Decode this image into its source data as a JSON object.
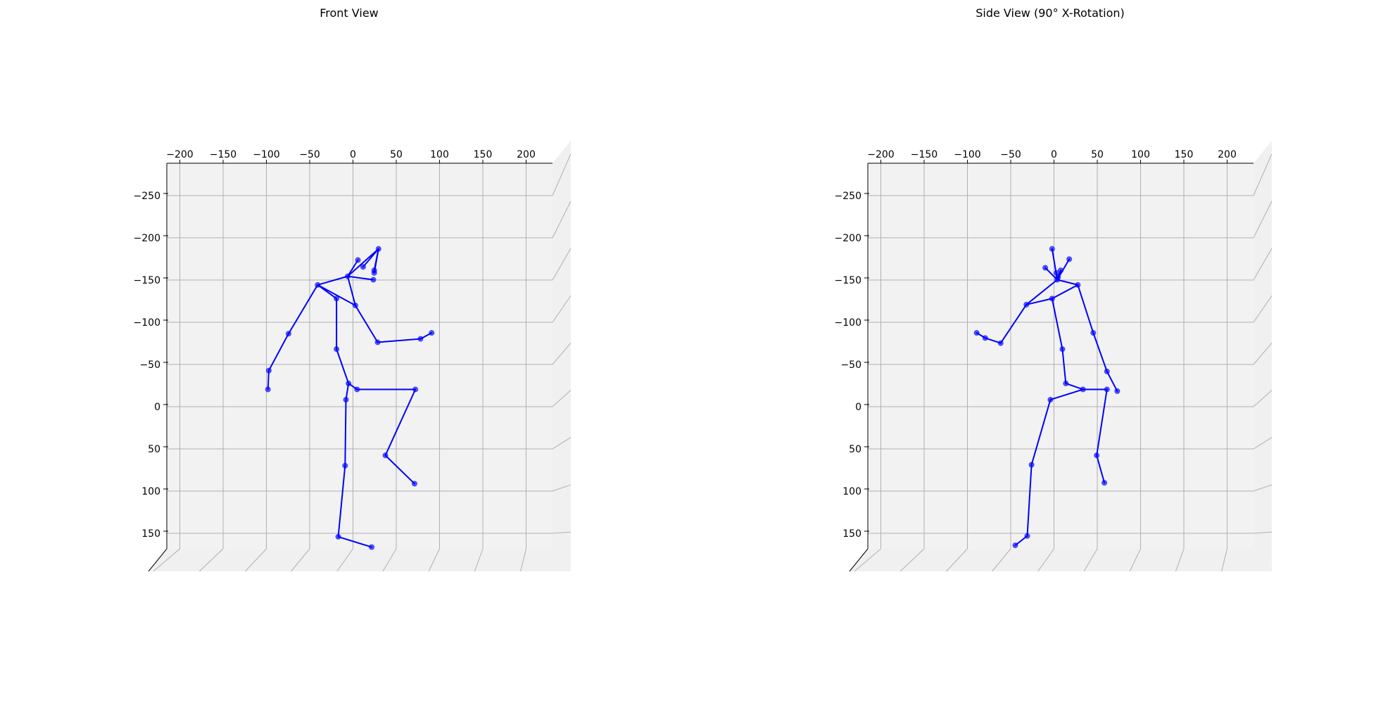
{
  "figure": {
    "background": "#ffffff",
    "pane_color": "#f2f2f2",
    "floor_color": "#f0f0f0",
    "grid_color": "#b0b0b0",
    "skeleton_color": "#0000ff"
  },
  "chart_data": [
    {
      "type": "scatter",
      "subtype": "3d-skeleton",
      "title": "Front View",
      "x_ticks": [
        "−200",
        "−150",
        "−100",
        "−50",
        "0",
        "50",
        "100",
        "150",
        "200"
      ],
      "y_ticks": [
        "−250",
        "−200",
        "−150",
        "−100",
        "−50",
        "0",
        "50",
        "100",
        "150"
      ],
      "xlim": [
        -215,
        235
      ],
      "ylim": [
        -280,
        170
      ],
      "grid": true,
      "joints": [
        {
          "x": -4,
          "y": -148
        },
        {
          "x": 32,
          "y": -180
        },
        {
          "x": 8,
          "y": -167
        },
        {
          "x": 14,
          "y": -159
        },
        {
          "x": 27,
          "y": -155
        },
        {
          "x": 27,
          "y": -152
        },
        {
          "x": 26,
          "y": -144
        },
        {
          "x": -39,
          "y": -138
        },
        {
          "x": -17,
          "y": -122
        },
        {
          "x": 5,
          "y": -114
        },
        {
          "x": -73,
          "y": -81
        },
        {
          "x": 31,
          "y": -71
        },
        {
          "x": 81,
          "y": -75
        },
        {
          "x": 94,
          "y": -82
        },
        {
          "x": -17,
          "y": -63
        },
        {
          "x": -96,
          "y": -38
        },
        {
          "x": -97,
          "y": -16
        },
        {
          "x": -3,
          "y": -23
        },
        {
          "x": 7,
          "y": -16
        },
        {
          "x": 75,
          "y": -16
        },
        {
          "x": -6,
          "y": -4
        },
        {
          "x": 40,
          "y": 61
        },
        {
          "x": -7,
          "y": 73
        },
        {
          "x": 74,
          "y": 94
        },
        {
          "x": -15,
          "y": 156
        },
        {
          "x": 24,
          "y": 168
        }
      ],
      "bones": [
        [
          0,
          1
        ],
        [
          0,
          2
        ],
        [
          1,
          3
        ],
        [
          1,
          4
        ],
        [
          1,
          5
        ],
        [
          0,
          6
        ],
        [
          0,
          7
        ],
        [
          0,
          9
        ],
        [
          7,
          8
        ],
        [
          7,
          9
        ],
        [
          7,
          10
        ],
        [
          10,
          15
        ],
        [
          15,
          16
        ],
        [
          9,
          11
        ],
        [
          11,
          12
        ],
        [
          12,
          13
        ],
        [
          8,
          14
        ],
        [
          14,
          17
        ],
        [
          17,
          18
        ],
        [
          18,
          19
        ],
        [
          19,
          21
        ],
        [
          21,
          23
        ],
        [
          17,
          20
        ],
        [
          20,
          22
        ],
        [
          22,
          24
        ],
        [
          24,
          25
        ]
      ]
    },
    {
      "type": "scatter",
      "subtype": "3d-skeleton",
      "title": "Side View (90° X-Rotation)",
      "x_ticks": [
        "−200",
        "−150",
        "−100",
        "−50",
        "0",
        "50",
        "100",
        "150",
        "200"
      ],
      "y_ticks": [
        "−250",
        "−200",
        "−150",
        "−100",
        "−50",
        "0",
        "50",
        "100",
        "150"
      ],
      "xlim": [
        -225,
        225
      ],
      "ylim": [
        -280,
        170
      ],
      "grid": true,
      "joints": [
        {
          "x": -10,
          "y": -180
        },
        {
          "x": 10,
          "y": -168
        },
        {
          "x": -18,
          "y": -158
        },
        {
          "x": -5,
          "y": -152
        },
        {
          "x": 0,
          "y": -155
        },
        {
          "x": -3,
          "y": -147
        },
        {
          "x": -4,
          "y": -144
        },
        {
          "x": 20,
          "y": -138
        },
        {
          "x": -40,
          "y": -115
        },
        {
          "x": -10,
          "y": -122
        },
        {
          "x": 38,
          "y": -82
        },
        {
          "x": -98,
          "y": -82
        },
        {
          "x": -88,
          "y": -76
        },
        {
          "x": -70,
          "y": -70
        },
        {
          "x": 2,
          "y": -63
        },
        {
          "x": 54,
          "y": -37
        },
        {
          "x": 6,
          "y": -23
        },
        {
          "x": 26,
          "y": -16
        },
        {
          "x": 54,
          "y": -16
        },
        {
          "x": 66,
          "y": -14
        },
        {
          "x": -12,
          "y": -4
        },
        {
          "x": 42,
          "y": 61
        },
        {
          "x": -34,
          "y": 72
        },
        {
          "x": 51,
          "y": 93
        },
        {
          "x": -39,
          "y": 155
        },
        {
          "x": -53,
          "y": 166
        }
      ],
      "bones": [
        [
          0,
          6
        ],
        [
          1,
          6
        ],
        [
          2,
          6
        ],
        [
          3,
          6
        ],
        [
          4,
          6
        ],
        [
          5,
          6
        ],
        [
          6,
          7
        ],
        [
          6,
          8
        ],
        [
          7,
          9
        ],
        [
          8,
          9
        ],
        [
          8,
          13
        ],
        [
          13,
          12
        ],
        [
          12,
          11
        ],
        [
          7,
          10
        ],
        [
          10,
          15
        ],
        [
          15,
          19
        ],
        [
          9,
          14
        ],
        [
          14,
          16
        ],
        [
          16,
          17
        ],
        [
          17,
          18
        ],
        [
          18,
          21
        ],
        [
          21,
          23
        ],
        [
          17,
          20
        ],
        [
          20,
          22
        ],
        [
          22,
          24
        ],
        [
          24,
          25
        ]
      ]
    }
  ]
}
